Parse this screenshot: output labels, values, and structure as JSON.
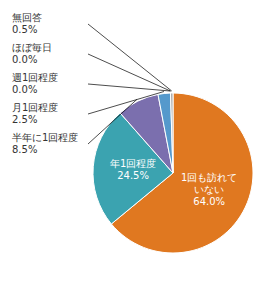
{
  "chart_data": {
    "type": "pie",
    "categories": [
      "1回も訪れて\nいない",
      "年1回程度",
      "半年に1回程度",
      "月1回程度",
      "週1回程度",
      "ほぼ毎日",
      "無回答"
    ],
    "values": [
      64.0,
      24.5,
      8.5,
      2.5,
      0.0,
      0.0,
      0.5
    ],
    "value_labels": [
      "64.0%",
      "24.5%",
      "8.5%",
      "2.5%",
      "0.0%",
      "0.0%",
      "0.5%"
    ],
    "colors": [
      "#E07820",
      "#3BA3B0",
      "#7B6FAE",
      "#5599CC",
      "#8FAA3A",
      "#8FAA3A",
      "#AAAAAA"
    ],
    "data_labels": true
  }
}
